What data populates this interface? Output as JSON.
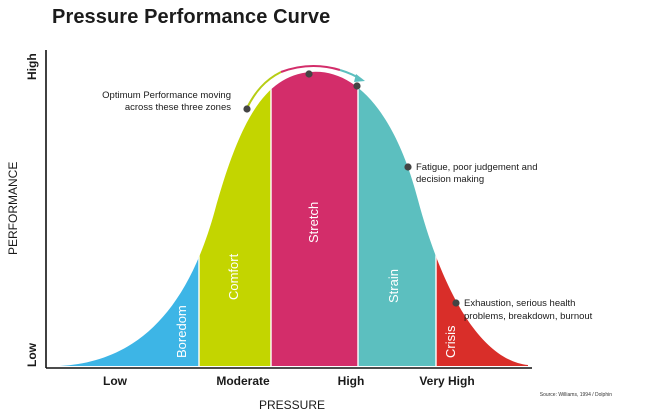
{
  "chart_data": {
    "type": "area",
    "title": "Pressure Performance Curve",
    "xlabel": "PRESSURE",
    "ylabel": "PERFORMANCE",
    "x_ticks": [
      "Low",
      "Moderate",
      "High",
      "Very High"
    ],
    "y_ticks": [
      "Low",
      "High"
    ],
    "zones": [
      {
        "name": "Boredom",
        "color": "#3db5e6"
      },
      {
        "name": "Comfort",
        "color": "#c3d500"
      },
      {
        "name": "Stretch",
        "color": "#d32d6a"
      },
      {
        "name": "Strain",
        "color": "#5cbfbf"
      },
      {
        "name": "Crisis",
        "color": "#d92e29"
      }
    ],
    "annotations": [
      {
        "line1": "Optimum Performance moving",
        "line2": "across these three zones"
      },
      {
        "line1": "Fatigue, poor judgement and",
        "line2": "decision making"
      },
      {
        "line1": "Exhaustion, serious health",
        "line2": "problems, breakdown, burnout"
      }
    ],
    "source": "Source: Williams, 1994 / Dolphin",
    "grid": false,
    "legend": "none"
  }
}
